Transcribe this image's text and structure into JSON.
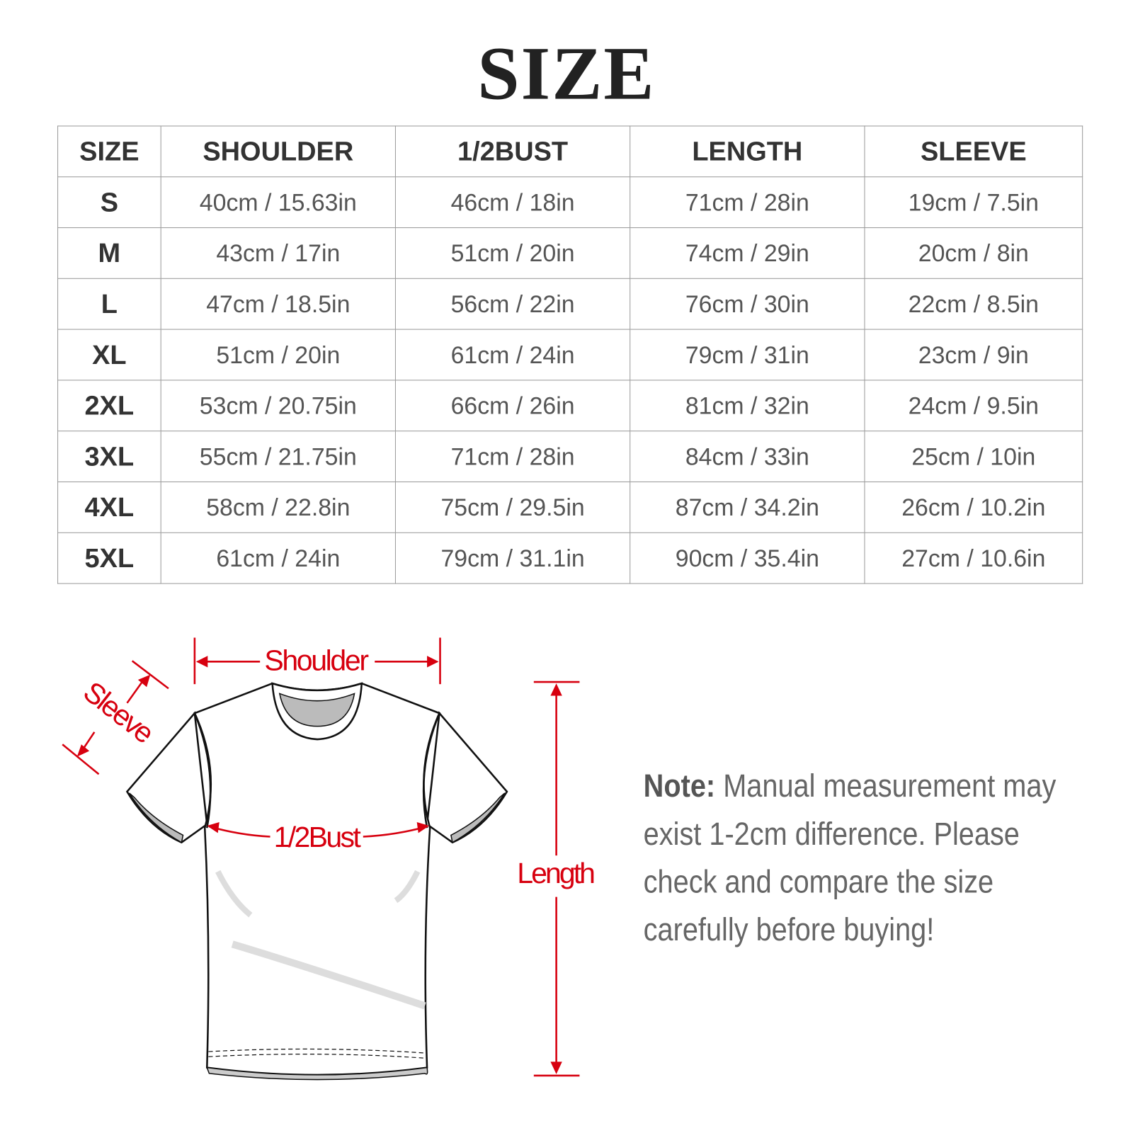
{
  "title": "SIZE",
  "table": {
    "headers": [
      "SIZE",
      "SHOULDER",
      "1/2BUST",
      "LENGTH",
      "SLEEVE"
    ],
    "rows": [
      [
        "S",
        "40cm / 15.63in",
        "46cm / 18in",
        "71cm / 28in",
        "19cm / 7.5in"
      ],
      [
        "M",
        "43cm / 17in",
        "51cm / 20in",
        "74cm / 29in",
        "20cm / 8in"
      ],
      [
        "L",
        "47cm / 18.5in",
        "56cm / 22in",
        "76cm / 30in",
        "22cm / 8.5in"
      ],
      [
        "XL",
        "51cm / 20in",
        "61cm / 24in",
        "79cm / 31in",
        "23cm / 9in"
      ],
      [
        "2XL",
        "53cm / 20.75in",
        "66cm / 26in",
        "81cm / 32in",
        "24cm / 9.5in"
      ],
      [
        "3XL",
        "55cm / 21.75in",
        "71cm / 28in",
        "84cm / 33in",
        "25cm / 10in"
      ],
      [
        "4XL",
        "58cm / 22.8in",
        "75cm / 29.5in",
        "87cm / 34.2in",
        "26cm / 10.2in"
      ],
      [
        "5XL",
        "61cm / 24in",
        "79cm / 31.1in",
        "90cm / 35.4in",
        "27cm / 10.6in"
      ]
    ]
  },
  "diagram": {
    "shoulder": "Shoulder",
    "sleeve": "Sleeve",
    "bust": "1/2Bust",
    "length": "Length",
    "accent": "#d7000f"
  },
  "note": {
    "label": "Note:",
    "text": " Manual measurement may exist 1-2cm difference. Please check and compare the size carefully before buying!"
  }
}
